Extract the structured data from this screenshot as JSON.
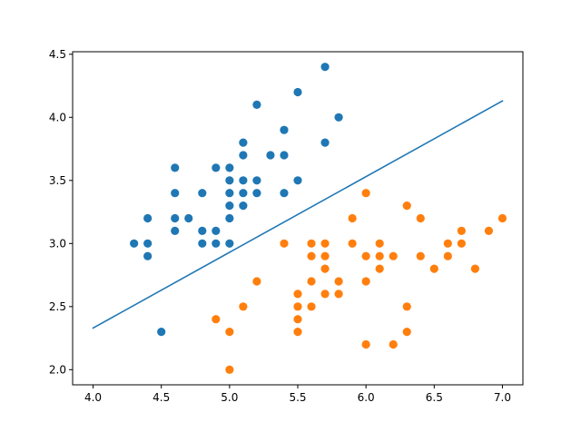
{
  "chart_data": {
    "type": "scatter",
    "title": "",
    "xlabel": "",
    "ylabel": "",
    "xlim": [
      3.85,
      7.15
    ],
    "ylim": [
      1.88,
      4.52
    ],
    "grid": false,
    "xticks": [
      4.0,
      4.5,
      5.0,
      5.5,
      6.0,
      6.5,
      7.0
    ],
    "xtick_labels": [
      "4.0",
      "4.5",
      "5.0",
      "5.5",
      "6.0",
      "6.5",
      "7.0"
    ],
    "yticks": [
      2.0,
      2.5,
      3.0,
      3.5,
      4.0,
      4.5
    ],
    "ytick_labels": [
      "2.0",
      "2.5",
      "3.0",
      "3.5",
      "4.0",
      "4.5"
    ],
    "series": [
      {
        "color": "#1f77b4",
        "points": [
          [
            4.3,
            3.0
          ],
          [
            4.4,
            3.2
          ],
          [
            4.4,
            3.0
          ],
          [
            4.4,
            2.9
          ],
          [
            4.5,
            2.3
          ],
          [
            4.6,
            3.6
          ],
          [
            4.6,
            3.4
          ],
          [
            4.6,
            3.2
          ],
          [
            4.6,
            3.1
          ],
          [
            4.7,
            3.2
          ],
          [
            4.8,
            3.4
          ],
          [
            4.8,
            3.1
          ],
          [
            4.8,
            3.0
          ],
          [
            4.9,
            3.6
          ],
          [
            4.9,
            3.1
          ],
          [
            4.9,
            3.0
          ],
          [
            5.0,
            3.6
          ],
          [
            5.0,
            3.5
          ],
          [
            5.0,
            3.4
          ],
          [
            5.0,
            3.3
          ],
          [
            5.0,
            3.2
          ],
          [
            5.0,
            3.0
          ],
          [
            5.1,
            3.8
          ],
          [
            5.1,
            3.7
          ],
          [
            5.1,
            3.5
          ],
          [
            5.1,
            3.4
          ],
          [
            5.1,
            3.3
          ],
          [
            5.2,
            4.1
          ],
          [
            5.2,
            3.5
          ],
          [
            5.2,
            3.4
          ],
          [
            5.3,
            3.7
          ],
          [
            5.4,
            3.9
          ],
          [
            5.4,
            3.7
          ],
          [
            5.4,
            3.4
          ],
          [
            5.5,
            4.2
          ],
          [
            5.5,
            3.5
          ],
          [
            5.7,
            4.4
          ],
          [
            5.7,
            3.8
          ],
          [
            5.8,
            4.0
          ]
        ]
      },
      {
        "color": "#ff7f0e",
        "points": [
          [
            4.9,
            2.4
          ],
          [
            5.0,
            2.3
          ],
          [
            5.0,
            2.0
          ],
          [
            5.1,
            2.5
          ],
          [
            5.2,
            2.7
          ],
          [
            5.4,
            3.0
          ],
          [
            5.5,
            2.6
          ],
          [
            5.5,
            2.5
          ],
          [
            5.5,
            2.4
          ],
          [
            5.5,
            2.3
          ],
          [
            5.6,
            3.0
          ],
          [
            5.6,
            2.9
          ],
          [
            5.6,
            2.7
          ],
          [
            5.6,
            2.5
          ],
          [
            5.7,
            3.0
          ],
          [
            5.7,
            2.9
          ],
          [
            5.7,
            2.8
          ],
          [
            5.7,
            2.6
          ],
          [
            5.8,
            2.7
          ],
          [
            5.8,
            2.6
          ],
          [
            5.9,
            3.2
          ],
          [
            5.9,
            3.0
          ],
          [
            6.0,
            3.4
          ],
          [
            6.0,
            2.9
          ],
          [
            6.0,
            2.7
          ],
          [
            6.0,
            2.2
          ],
          [
            6.1,
            3.0
          ],
          [
            6.1,
            2.9
          ],
          [
            6.1,
            2.8
          ],
          [
            6.2,
            2.9
          ],
          [
            6.2,
            2.2
          ],
          [
            6.3,
            3.3
          ],
          [
            6.3,
            2.5
          ],
          [
            6.3,
            2.3
          ],
          [
            6.4,
            3.2
          ],
          [
            6.4,
            2.9
          ],
          [
            6.5,
            2.8
          ],
          [
            6.6,
            3.0
          ],
          [
            6.6,
            2.9
          ],
          [
            6.7,
            3.1
          ],
          [
            6.7,
            3.0
          ],
          [
            6.8,
            2.8
          ],
          [
            6.9,
            3.1
          ],
          [
            7.0,
            3.2
          ]
        ]
      }
    ],
    "line": {
      "color": "#1f77b4",
      "x": [
        4.0,
        7.0
      ],
      "y": [
        2.33,
        4.13
      ]
    }
  }
}
